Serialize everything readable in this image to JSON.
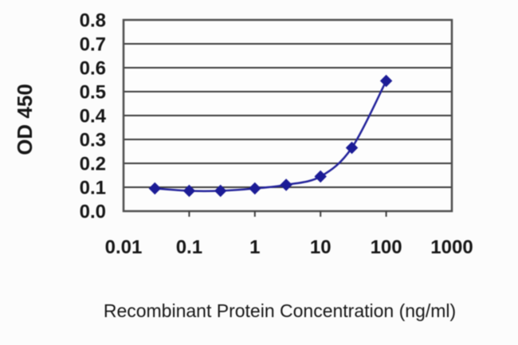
{
  "figure": {
    "background": "#fcfcfc"
  },
  "colors": {
    "series_line": "#23239b",
    "marker_fill": "#1c1c96",
    "grid": "#3d3d3d",
    "plot_border": "#4d4d4d",
    "text": "#161616",
    "plot_background": "#fdfdfd"
  },
  "chart_data": {
    "type": "line",
    "title": "",
    "xlabel": "Recombinant Protein Concentration (ng/ml)",
    "ylabel": "OD 450",
    "x_scale": "log10",
    "xlim": [
      0.01,
      1000
    ],
    "ylim": [
      0,
      0.8
    ],
    "x_ticks": [
      0.01,
      0.1,
      1,
      10,
      100,
      1000
    ],
    "x_tick_labels": [
      "0.01",
      "0.1",
      "1",
      "10",
      "100",
      "1000"
    ],
    "y_ticks": [
      0,
      0.1,
      0.2,
      0.3,
      0.4,
      0.5,
      0.6,
      0.7,
      0.8
    ],
    "y_tick_labels": [
      "0.0",
      "0.1",
      "0.2",
      "0.3",
      "0.4",
      "0.5",
      "0.6",
      "0.7",
      "0.8"
    ],
    "grid": "horizontal",
    "legend": "none",
    "series": [
      {
        "name": "OD 450",
        "marker": "diamond",
        "smooth": true,
        "x": [
          0.03,
          0.1,
          0.3,
          1,
          3,
          10,
          30,
          100
        ],
        "y": [
          0.095,
          0.085,
          0.085,
          0.095,
          0.11,
          0.145,
          0.265,
          0.545
        ]
      }
    ]
  }
}
